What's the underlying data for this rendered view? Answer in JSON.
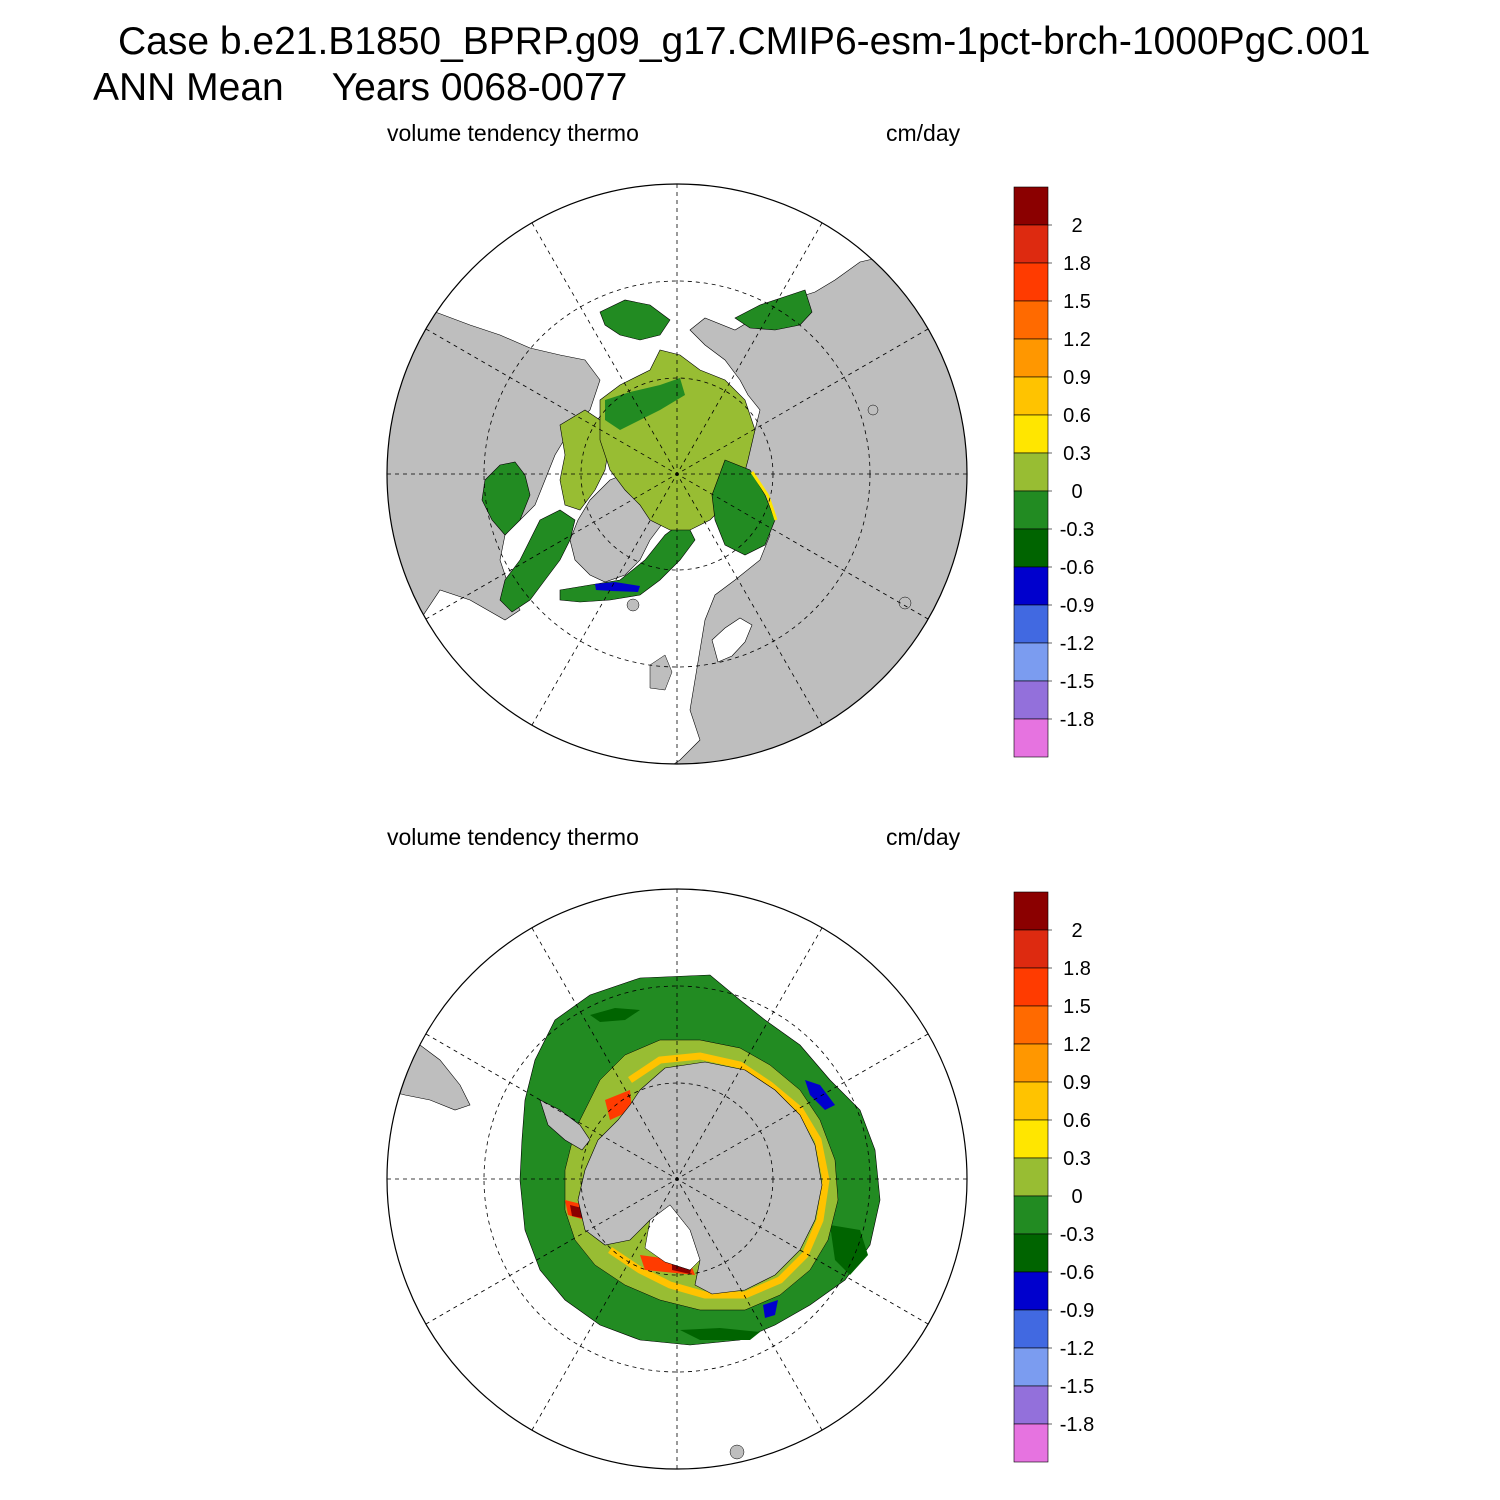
{
  "header": {
    "title_line1": "Case b.e21.B1850_BPRP.g09_g17.CMIP6-esm-1pct-brch-1000PgC.001",
    "title_line2_period": "ANN Mean",
    "title_line2_years": "Years 0068-0077"
  },
  "panels": [
    {
      "id": "north",
      "hemisphere": "Northern Hemisphere",
      "variable_label": "volume tendency thermo",
      "units_label": "cm/day"
    },
    {
      "id": "south",
      "hemisphere": "Southern Hemisphere",
      "variable_label": "volume tendency thermo",
      "units_label": "cm/day"
    }
  ],
  "colorbar": {
    "colors_top_to_bottom": [
      "#8b0000",
      "#dd2a10",
      "#ff3b00",
      "#ff6a00",
      "#ff9700",
      "#ffc300",
      "#ffe600",
      "#98bd33",
      "#228b22",
      "#006400",
      "#0000cd",
      "#4169e1",
      "#7b9cf0",
      "#9370db",
      "#e673e0"
    ],
    "tick_labels_top_to_bottom": [
      "2",
      "1.8",
      "1.5",
      "1.2",
      "0.9",
      "0.6",
      "0.3",
      "0",
      "-0.3",
      "-0.6",
      "-0.9",
      "-1.2",
      "-1.5",
      "-1.8"
    ]
  },
  "map_colors": {
    "land": "#bebebe",
    "ocean": "#ffffff"
  }
}
